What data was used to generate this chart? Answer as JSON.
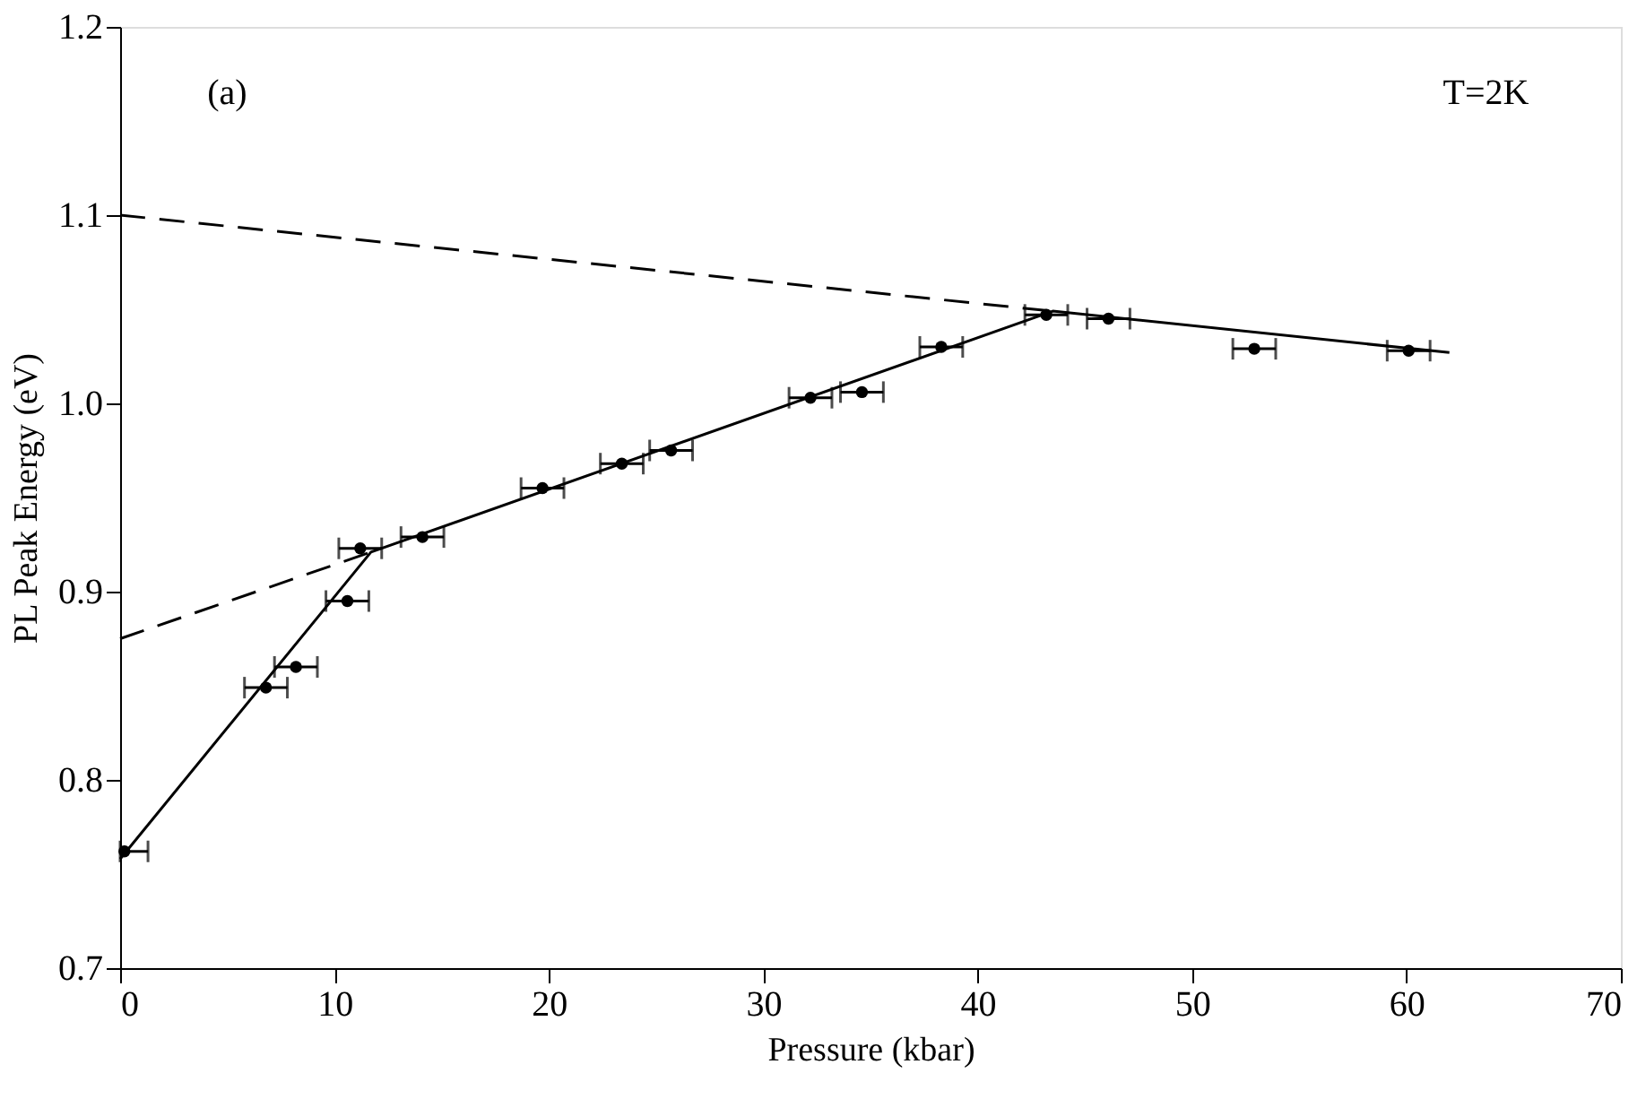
{
  "chart_data": {
    "type": "scatter",
    "xlabel": "Pressure  (kbar)",
    "ylabel": "PL Peak Energy  (eV)",
    "annotations": [
      "(a)",
      "T=2K"
    ],
    "xlim": [
      0,
      70
    ],
    "xticks": [
      0,
      10,
      20,
      30,
      40,
      50,
      60,
      70
    ],
    "ylim": [
      0.7,
      1.2
    ],
    "yticks": [
      0.7,
      0.8,
      0.9,
      {
        "value": 1.0,
        "label": "1.0"
      },
      1.1,
      1.2
    ],
    "grid": false,
    "series": [
      {
        "color": "#000000",
        "marker": "circle",
        "x": [
          0.2,
          6.8,
          8.2,
          10.6,
          11.2,
          14.1,
          19.7,
          23.4,
          25.7,
          32.2,
          34.6,
          38.3,
          43.2,
          46.1,
          52.9,
          60.1
        ],
        "values": [
          0.762,
          0.849,
          0.86,
          0.895,
          0.923,
          0.929,
          0.955,
          0.968,
          0.975,
          1.003,
          1.006,
          1.03,
          1.047,
          1.045,
          1.029,
          1.028
        ],
        "xerrors": [
          [
            0,
            1.3
          ],
          1.0,
          1.0,
          1.0,
          1.0,
          1.0,
          1.0,
          1.0,
          1.0,
          1.0,
          1.0,
          1.0,
          1.0,
          1.0,
          1.0,
          1.0
        ]
      },
      {
        "type": "line",
        "color": "#000000",
        "line_style": "solid",
        "x": [
          0,
          11.7,
          43.5,
          62
        ],
        "values": [
          0.758,
          0.921,
          1.049,
          1.027
        ]
      },
      {
        "type": "line",
        "color": "#000000",
        "line_style": "dashed",
        "x": [
          0,
          43.5
        ],
        "values": [
          1.1,
          1.049
        ]
      },
      {
        "type": "line",
        "color": "#000000",
        "line_style": "dashed",
        "x": [
          0,
          11.7
        ],
        "values": [
          0.875,
          0.921
        ]
      }
    ]
  }
}
